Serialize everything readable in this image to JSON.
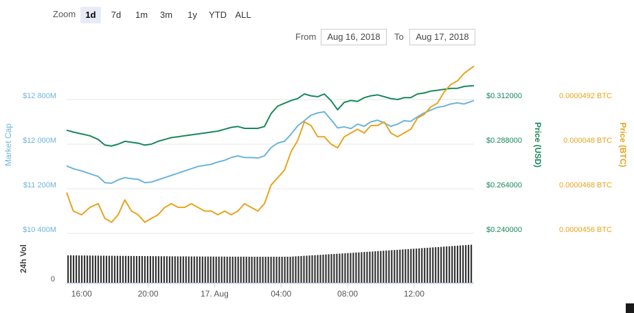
{
  "zoom": {
    "label": "Zoom",
    "options": [
      "1d",
      "7d",
      "1m",
      "3m",
      "1y",
      "YTD",
      "ALL"
    ],
    "selected": "1d"
  },
  "range": {
    "from_label": "From",
    "from_value": "Aug 16, 2018",
    "to_label": "To",
    "to_value": "Aug 17, 2018"
  },
  "colors": {
    "market_cap": "#6cb4dc",
    "price_usd": "#17875a",
    "price_btc": "#e9a31c",
    "volume": "#333333",
    "grid": "#e6e6e6"
  },
  "chart_data": {
    "type": "line",
    "x_tick_labels": [
      "16:00",
      "20:00",
      "17. Aug",
      "04:00",
      "08:00",
      "12:00"
    ],
    "x_tick_hours": [
      16,
      20,
      24,
      28,
      32,
      36
    ],
    "x_range_hours": [
      15.1,
      39.6
    ],
    "axes": {
      "market_cap": {
        "label": "Market Cap",
        "ticks": [
          "$12 800M",
          "$12 000M",
          "$11 200M",
          "$10 400M"
        ],
        "range": [
          10400,
          12800
        ]
      },
      "price_usd": {
        "label": "Price (USD)",
        "ticks": [
          "$0.312000",
          "$0.288000",
          "$0.264000",
          "$0.240000"
        ],
        "range": [
          0.24,
          0.312
        ]
      },
      "price_btc": {
        "label": "Price (BTC)",
        "ticks": [
          "0.0000492 BTC",
          "0.000048 BTC",
          "0.0000468 BTC",
          "0.0000456 BTC"
        ],
        "range": [
          4.56e-05,
          4.92e-05
        ]
      },
      "volume": {
        "label": "24h Vol",
        "ticks": [
          "0"
        ]
      }
    },
    "grid": true,
    "series": [
      {
        "name": "Market Cap",
        "axis": "market_cap",
        "x": [
          15.1,
          15.5,
          16.0,
          16.5,
          17.0,
          17.4,
          17.8,
          18.2,
          18.6,
          19.0,
          19.4,
          19.8,
          20.2,
          20.6,
          21.0,
          21.4,
          21.8,
          22.2,
          22.6,
          23.0,
          23.4,
          23.8,
          24.2,
          24.6,
          25.0,
          25.4,
          25.8,
          26.2,
          26.6,
          27.0,
          27.4,
          27.8,
          28.2,
          28.6,
          29.0,
          29.4,
          29.8,
          30.2,
          30.6,
          31.0,
          31.4,
          31.8,
          32.2,
          32.6,
          33.0,
          33.4,
          33.8,
          34.2,
          34.6,
          35.0,
          35.4,
          35.8,
          36.2,
          36.6,
          37.0,
          37.4,
          37.8,
          38.2,
          38.6,
          39.0,
          39.6
        ],
        "values": [
          11610,
          11560,
          11520,
          11470,
          11420,
          11310,
          11300,
          11360,
          11400,
          11380,
          11370,
          11310,
          11320,
          11360,
          11400,
          11440,
          11480,
          11520,
          11560,
          11600,
          11620,
          11640,
          11680,
          11710,
          11760,
          11790,
          11760,
          11760,
          11750,
          11790,
          11940,
          12020,
          12050,
          12180,
          12330,
          12420,
          12520,
          12560,
          12580,
          12440,
          12290,
          12310,
          12280,
          12360,
          12320,
          12400,
          12430,
          12380,
          12320,
          12360,
          12420,
          12410,
          12490,
          12560,
          12610,
          12660,
          12680,
          12720,
          12740,
          12720,
          12780
        ]
      },
      {
        "name": "Price (USD)",
        "axis": "price_usd",
        "x": [
          15.1,
          15.5,
          16.0,
          16.5,
          17.0,
          17.4,
          17.8,
          18.2,
          18.6,
          19.0,
          19.4,
          19.8,
          20.2,
          20.6,
          21.0,
          21.4,
          21.8,
          22.2,
          22.6,
          23.0,
          23.4,
          23.8,
          24.2,
          24.6,
          25.0,
          25.4,
          25.8,
          26.2,
          26.6,
          27.0,
          27.4,
          27.8,
          28.2,
          28.6,
          29.0,
          29.4,
          29.8,
          30.2,
          30.6,
          31.0,
          31.4,
          31.8,
          32.2,
          32.6,
          33.0,
          33.4,
          33.8,
          34.2,
          34.6,
          35.0,
          35.4,
          35.8,
          36.2,
          36.6,
          37.0,
          37.4,
          37.8,
          38.2,
          38.6,
          39.0,
          39.6
        ],
        "values": [
          0.2955,
          0.2945,
          0.2935,
          0.2925,
          0.2905,
          0.2875,
          0.287,
          0.288,
          0.2895,
          0.289,
          0.2885,
          0.2875,
          0.288,
          0.2895,
          0.2905,
          0.2915,
          0.292,
          0.2925,
          0.293,
          0.2935,
          0.294,
          0.2945,
          0.295,
          0.296,
          0.297,
          0.2975,
          0.2965,
          0.2965,
          0.2965,
          0.2975,
          0.3045,
          0.3085,
          0.31,
          0.3115,
          0.3125,
          0.315,
          0.314,
          0.3135,
          0.315,
          0.3115,
          0.3065,
          0.3105,
          0.3115,
          0.311,
          0.313,
          0.314,
          0.3145,
          0.3135,
          0.3125,
          0.312,
          0.313,
          0.313,
          0.315,
          0.3155,
          0.3165,
          0.317,
          0.3175,
          0.318,
          0.318,
          0.319,
          0.3195
        ]
      },
      {
        "name": "Price (BTC)",
        "axis": "price_btc",
        "x": [
          15.1,
          15.5,
          16.0,
          16.5,
          17.0,
          17.4,
          17.8,
          18.2,
          18.6,
          19.0,
          19.4,
          19.8,
          20.2,
          20.6,
          21.0,
          21.4,
          21.8,
          22.2,
          22.6,
          23.0,
          23.4,
          23.8,
          24.2,
          24.6,
          25.0,
          25.4,
          25.8,
          26.2,
          26.6,
          27.0,
          27.4,
          27.8,
          28.2,
          28.6,
          29.0,
          29.4,
          29.8,
          30.2,
          30.6,
          31.0,
          31.4,
          31.8,
          32.2,
          32.6,
          33.0,
          33.4,
          33.8,
          34.2,
          34.6,
          35.0,
          35.4,
          35.8,
          36.2,
          36.6,
          37.0,
          37.4,
          37.8,
          38.2,
          38.6,
          39.0,
          39.6
        ],
        "values": [
          4.67e-05,
          4.62e-05,
          4.61e-05,
          4.63e-05,
          4.64e-05,
          4.6e-05,
          4.59e-05,
          4.61e-05,
          4.65e-05,
          4.62e-05,
          4.61e-05,
          4.59e-05,
          4.6e-05,
          4.61e-05,
          4.63e-05,
          4.64e-05,
          4.63e-05,
          4.63e-05,
          4.64e-05,
          4.63e-05,
          4.62e-05,
          4.62e-05,
          4.61e-05,
          4.62e-05,
          4.61e-05,
          4.62e-05,
          4.64e-05,
          4.63e-05,
          4.62e-05,
          4.64e-05,
          4.69e-05,
          4.71e-05,
          4.73e-05,
          4.78e-05,
          4.81e-05,
          4.86e-05,
          4.85e-05,
          4.82e-05,
          4.82e-05,
          4.8e-05,
          4.79e-05,
          4.82e-05,
          4.83e-05,
          4.84e-05,
          4.83e-05,
          4.85e-05,
          4.85e-05,
          4.86e-05,
          4.83e-05,
          4.82e-05,
          4.83e-05,
          4.84e-05,
          4.87e-05,
          4.88e-05,
          4.9e-05,
          4.91e-05,
          4.94e-05,
          4.96e-05,
          4.97e-05,
          4.99e-05,
          5.01e-05
        ]
      }
    ]
  }
}
